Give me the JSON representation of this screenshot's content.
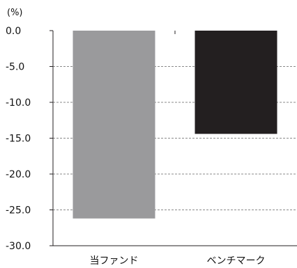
{
  "chart_data": {
    "type": "bar",
    "unit_label": "(%)",
    "categories": [
      "当ファンド",
      "ベンチマーク"
    ],
    "values": [
      -26.2,
      -14.4
    ],
    "colors": [
      "#9a9a9c",
      "#231f20"
    ],
    "ylim": [
      -30.0,
      0.0
    ],
    "yticks": [
      "0.0",
      "-5.0",
      "-10.0",
      "-15.0",
      "-20.0",
      "-25.0",
      "-30.0"
    ],
    "grid": true,
    "legend": "none"
  }
}
